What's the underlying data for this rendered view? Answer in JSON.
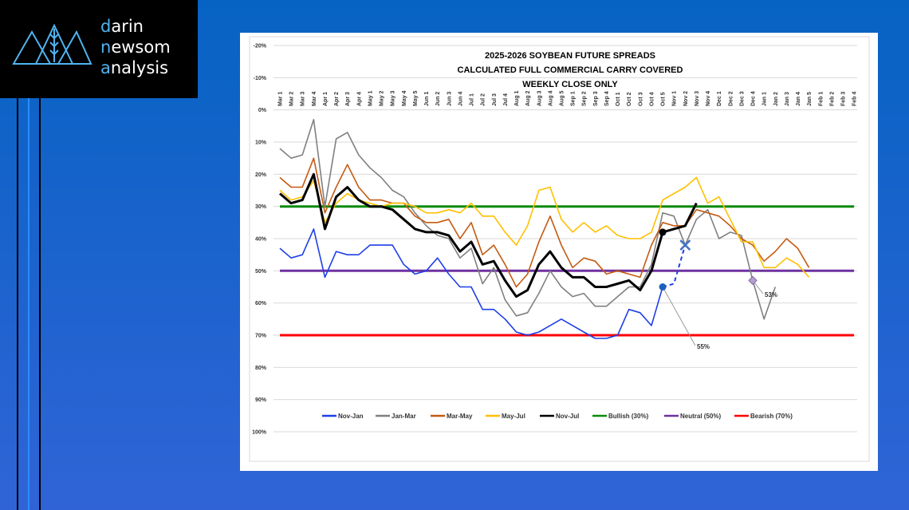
{
  "logo": {
    "words": [
      {
        "initial": "d",
        "rest": "arin"
      },
      {
        "initial": "n",
        "rest": "ewsom"
      },
      {
        "initial": "a",
        "rest": "nalysis"
      }
    ]
  },
  "chart_data": {
    "type": "line",
    "title": [
      "2025-2026 SOYBEAN FUTURE SPREADS",
      "CALCULATED FULL COMMERCIAL CARRY COVERED",
      "WEEKLY CLOSE ONLY"
    ],
    "categories": [
      "Mar 1",
      "Mar 2",
      "Mar 3",
      "Mar 4",
      "Apr 1",
      "Apr 2",
      "Apr 3",
      "Apr 4",
      "May 1",
      "May 2",
      "May 3",
      "May 4",
      "May 5",
      "Jun 1",
      "Jun 2",
      "Jun 3",
      "Jun 4",
      "Jul 1",
      "Jul 2",
      "Jul 3",
      "Jul 4",
      "Aug 1",
      "Aug 2",
      "Aug 3",
      "Aug 4",
      "Aug 5",
      "Sep 1",
      "Sep 2",
      "Sep 3",
      "Sep 4",
      "Oct 1",
      "Oct 2",
      "Oct 3",
      "Oct 4",
      "Oct 5",
      "Nov 1",
      "Nov 2",
      "Nov 3",
      "Nov 4",
      "Dec 1",
      "Dec 2",
      "Dec 3",
      "Dec 4",
      "Jan 1",
      "Jan 2",
      "Jan 3",
      "Jan 4",
      "Jan 5",
      "Feb 1",
      "Feb 2",
      "Feb 3",
      "Feb 4"
    ],
    "ylim": [
      -20,
      100
    ],
    "y_reversed": true,
    "yticks": [
      {
        "value": -20,
        "label": "-20%"
      },
      {
        "value": -10,
        "label": "-10%"
      },
      {
        "value": 0,
        "label": "0%"
      },
      {
        "value": 10,
        "label": "10%"
      },
      {
        "value": 20,
        "label": "20%"
      },
      {
        "value": 30,
        "label": "30%"
      },
      {
        "value": 40,
        "label": "40%"
      },
      {
        "value": 50,
        "label": "50%"
      },
      {
        "value": 60,
        "label": "60%"
      },
      {
        "value": 70,
        "label": "70%"
      },
      {
        "value": 80,
        "label": "80%"
      },
      {
        "value": 90,
        "label": "90%"
      },
      {
        "value": 100,
        "label": "100%"
      }
    ],
    "grid": true,
    "legend": "bottom",
    "series": [
      {
        "name": "Nov-Jan",
        "color": "#1f3fe8",
        "values": [
          43,
          46,
          45,
          37,
          52,
          44,
          45,
          45,
          42,
          42,
          42,
          48,
          51,
          50,
          46,
          51,
          55,
          55,
          62,
          62,
          65,
          69,
          70,
          69,
          67,
          65,
          67,
          69,
          71,
          71,
          70,
          62,
          63,
          67,
          55,
          null,
          null,
          null,
          null,
          null,
          null,
          null,
          null,
          null,
          null,
          null,
          null,
          null,
          null,
          null,
          null,
          null
        ]
      },
      {
        "name": "Jan-Mar",
        "color": "#808080",
        "values": [
          12,
          15,
          14,
          3,
          30,
          9,
          7,
          14,
          18,
          21,
          25,
          27,
          32,
          36,
          39,
          40,
          46,
          43,
          54,
          49,
          59,
          64,
          63,
          57,
          50,
          55,
          58,
          57,
          61,
          61,
          58,
          55,
          55,
          48,
          32,
          33,
          42,
          34,
          31,
          40,
          38,
          39,
          53,
          65,
          55,
          null,
          null,
          null,
          null,
          null,
          null,
          null
        ]
      },
      {
        "name": "Mar-May",
        "color": "#c55a11",
        "values": [
          21,
          24,
          24,
          15,
          32,
          24,
          17,
          24,
          28,
          28,
          29,
          29,
          33,
          35,
          35,
          34,
          40,
          35,
          45,
          42,
          48,
          55,
          51,
          41,
          33,
          42,
          49,
          46,
          47,
          51,
          50,
          51,
          52,
          42,
          35,
          36,
          36,
          31,
          32,
          33,
          36,
          40,
          42,
          47,
          44,
          40,
          43,
          49,
          null,
          null,
          null,
          null
        ]
      },
      {
        "name": "May-Jul",
        "color": "#ffc000",
        "values": [
          25,
          28,
          27,
          22,
          35,
          29,
          26,
          28,
          29,
          30,
          29,
          29,
          30,
          32,
          32,
          31,
          32,
          29,
          33,
          33,
          38,
          42,
          36,
          25,
          24,
          34,
          38,
          35,
          38,
          36,
          39,
          40,
          40,
          38,
          28,
          26,
          24,
          21,
          29,
          27,
          34,
          41,
          41,
          49,
          49,
          46,
          48,
          52,
          null,
          null,
          null,
          null
        ]
      },
      {
        "name": "Nov-Jul",
        "color": "#000000",
        "width": 3,
        "values": [
          26,
          29,
          28,
          20,
          37,
          27,
          24,
          28,
          30,
          30,
          31,
          34,
          37,
          38,
          38,
          39,
          44,
          41,
          48,
          47,
          53,
          58,
          56,
          48,
          44,
          49,
          52,
          52,
          55,
          55,
          54,
          53,
          56,
          50,
          38,
          37,
          36,
          29,
          null,
          null,
          null,
          null,
          null,
          null,
          null,
          null,
          null,
          null,
          null,
          null,
          null,
          null
        ]
      },
      {
        "name": "Bullish (30%)",
        "color": "#0a8a0a",
        "width": 3,
        "values": [
          30,
          30,
          30,
          30,
          30,
          30,
          30,
          30,
          30,
          30,
          30,
          30,
          30,
          30,
          30,
          30,
          30,
          30,
          30,
          30,
          30,
          30,
          30,
          30,
          30,
          30,
          30,
          30,
          30,
          30,
          30,
          30,
          30,
          30,
          30,
          30,
          30,
          30,
          30,
          30,
          30,
          30,
          30,
          30,
          30,
          30,
          30,
          30,
          30,
          30,
          30,
          30
        ]
      },
      {
        "name": "Neutral (50%)",
        "color": "#7030a0",
        "width": 3,
        "values": [
          50,
          50,
          50,
          50,
          50,
          50,
          50,
          50,
          50,
          50,
          50,
          50,
          50,
          50,
          50,
          50,
          50,
          50,
          50,
          50,
          50,
          50,
          50,
          50,
          50,
          50,
          50,
          50,
          50,
          50,
          50,
          50,
          50,
          50,
          50,
          50,
          50,
          50,
          50,
          50,
          50,
          50,
          50,
          50,
          50,
          50,
          50,
          50,
          50,
          50,
          50,
          50
        ]
      },
      {
        "name": "Bearish (70%)",
        "color": "#ff0000",
        "width": 3,
        "values": [
          70,
          70,
          70,
          70,
          70,
          70,
          70,
          70,
          70,
          70,
          70,
          70,
          70,
          70,
          70,
          70,
          70,
          70,
          70,
          70,
          70,
          70,
          70,
          70,
          70,
          70,
          70,
          70,
          70,
          70,
          70,
          70,
          70,
          70,
          70,
          70,
          70,
          70,
          70,
          70,
          70,
          70,
          70,
          70,
          70,
          70,
          70,
          70,
          70,
          70,
          70,
          70
        ]
      }
    ],
    "projection": {
      "color": "#1f3fe8",
      "values": [
        null,
        null,
        null,
        null,
        null,
        null,
        null,
        null,
        null,
        null,
        null,
        null,
        null,
        null,
        null,
        null,
        null,
        null,
        null,
        null,
        null,
        null,
        null,
        null,
        null,
        null,
        null,
        null,
        null,
        null,
        null,
        null,
        null,
        null,
        55,
        54,
        42,
        null,
        null,
        null,
        null,
        null,
        null,
        null,
        null,
        null,
        null,
        null,
        null,
        null,
        null,
        null
      ]
    },
    "markers": [
      {
        "category": "Oct 5",
        "value": 55,
        "shape": "circle",
        "color": "#1f5fbf"
      },
      {
        "category": "Oct 5",
        "value": 38,
        "shape": "circle",
        "color": "#000000"
      },
      {
        "category": "Nov 2",
        "value": 42,
        "shape": "cross",
        "color": "#4472c4"
      },
      {
        "category": "Dec 4",
        "value": 53,
        "shape": "diamond",
        "color": "#b4a0d0"
      }
    ],
    "annotations": [
      {
        "text": "55%",
        "category": "Oct 5",
        "value": 55
      },
      {
        "text": "53%",
        "category": "Dec 4",
        "value": 53
      }
    ]
  }
}
